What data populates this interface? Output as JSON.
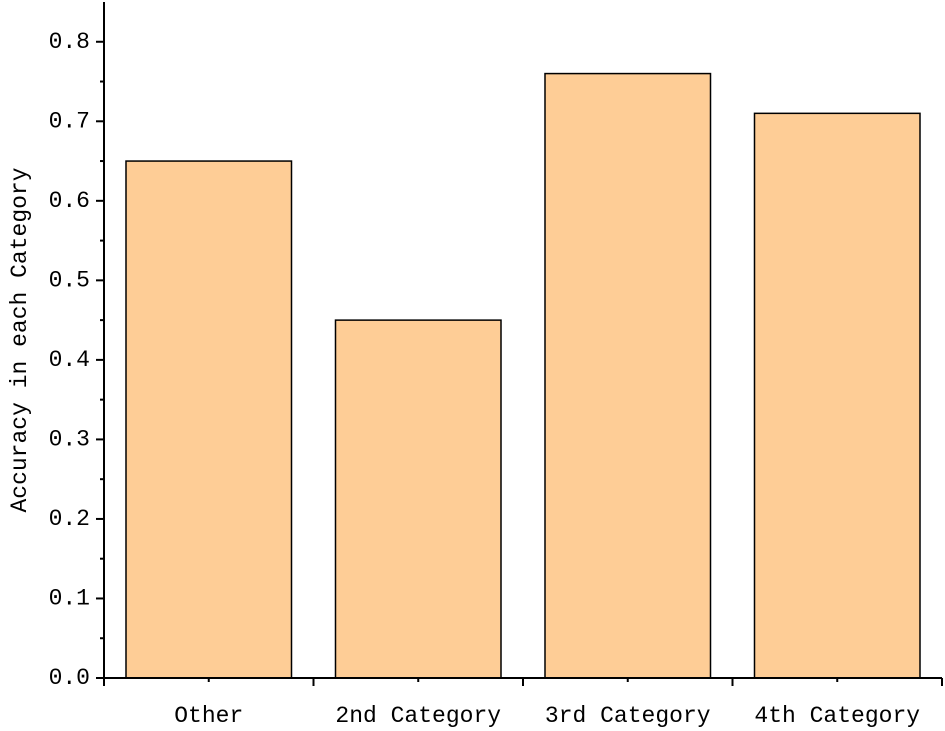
{
  "chart_data": {
    "type": "bar",
    "ylabel": "Accuracy in each Category",
    "categories": [
      "Other",
      "2nd Category",
      "3rd Category",
      "4th Category"
    ],
    "values": [
      0.65,
      0.45,
      0.76,
      0.71
    ],
    "color": "#fecd96",
    "ylim": [
      0,
      0.85
    ],
    "yticks": [
      {
        "value": 0,
        "label": "0.0"
      },
      0.1,
      0.2,
      0.3,
      0.4,
      0.5,
      0.6,
      0.7,
      0.8
    ],
    "grid": false
  }
}
